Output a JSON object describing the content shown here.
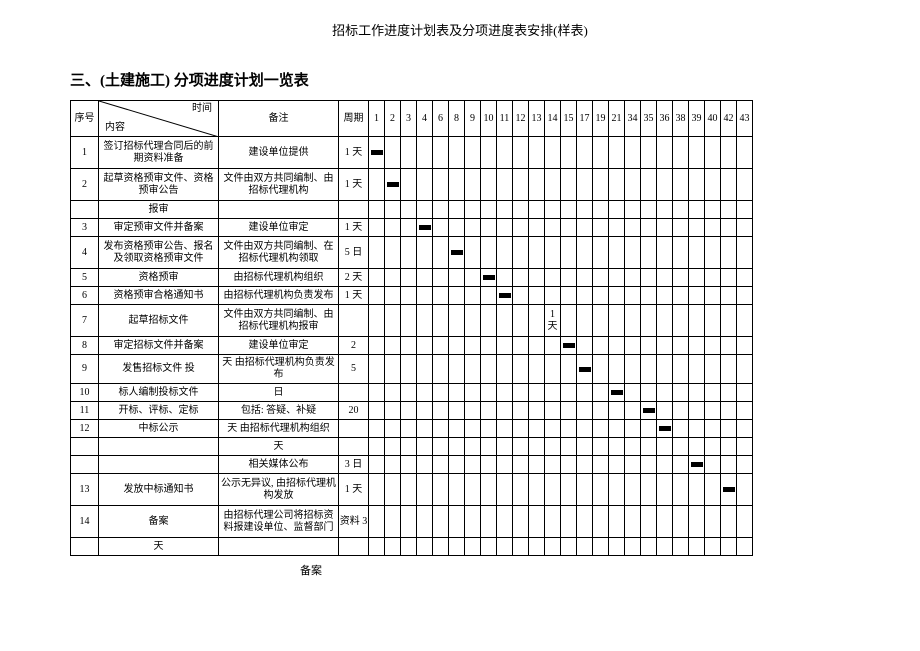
{
  "doc_title": "招标工作进度计划表及分项进度表安排(样表)",
  "section_title": "三、(土建施工) 分项进度计划一览表",
  "header": {
    "seq": "序号",
    "time": "时间",
    "content": "内容",
    "remark": "备注",
    "period": "周期"
  },
  "day_labels": [
    "1",
    "2",
    "3",
    "4",
    "6",
    "8",
    "9",
    "10",
    "11",
    "12",
    "13",
    "14",
    "15",
    "17",
    "19",
    "21",
    "34",
    "35",
    "36",
    "38",
    "39",
    "40",
    "42",
    "43"
  ],
  "rows": [
    {
      "seq": "1",
      "content": "签订招标代理合同后的前期资料准备",
      "remark": "建设单位提供",
      "period": "1 天",
      "bars": [
        0
      ],
      "lines": 2
    },
    {
      "seq": "2",
      "content": "起草资格预审文件、资格预审公告",
      "remark": "文件由双方共同编制、由招标代理机构",
      "period": "1 天",
      "bars": [
        1
      ],
      "lines": 2
    },
    {
      "seq": "",
      "content": "报审",
      "remark": "",
      "period": "",
      "bars": [],
      "lines": 1
    },
    {
      "seq": "3",
      "content": "审定预审文件并备案",
      "remark": "建设单位审定",
      "period": "1 天",
      "bars": [
        3
      ],
      "lines": 1
    },
    {
      "seq": "4",
      "content": "发布资格预审公告、报名及领取资格预审文件",
      "remark": "文件由双方共同编制、在招标代理机构领取",
      "period": "5 日",
      "bars": [
        5
      ],
      "lines": 2
    },
    {
      "seq": "5",
      "content": "资格预审",
      "remark": "由招标代理机构组织",
      "period": "2 天",
      "bars": [
        7
      ],
      "lines": 1
    },
    {
      "seq": "6",
      "content": "资格预审合格通知书",
      "remark": "由招标代理机构负责发布",
      "period": "1 天",
      "bars": [
        8
      ],
      "lines": 1
    },
    {
      "seq": "7",
      "content": "起草招标文件",
      "remark": "文件由双方共同编制、由招标代理机构报审",
      "period": "",
      "bars": [],
      "note": "1 天",
      "note_col": 11,
      "lines": 2
    },
    {
      "seq": "8",
      "content": "审定招标文件并备案",
      "remark": "建设单位审定",
      "period": "2",
      "bars": [
        12
      ],
      "lines": 1
    },
    {
      "seq": "9",
      "content": "发售招标文件      投",
      "remark": "天  由招标代理机构负责发布",
      "period": "5",
      "bars": [
        13
      ],
      "lines": 1
    },
    {
      "seq": "10",
      "content": "标人编制投标文件",
      "remark": "日",
      "period": "",
      "bars": [
        15
      ],
      "lines": 1
    },
    {
      "seq": "11",
      "content": "开标、评标、定标",
      "remark": "包括: 答疑、补疑",
      "period": "20",
      "bars": [
        17
      ],
      "lines": 1
    },
    {
      "seq": "12",
      "content": "中标公示",
      "remark": "天  由招标代理机构组织",
      "period": "",
      "bars": [
        18
      ],
      "lines": 1
    },
    {
      "seq": "",
      "content": "",
      "remark": "天",
      "period": "",
      "bars": [],
      "lines": 1
    },
    {
      "seq": "",
      "content": "",
      "remark": "相关媒体公布",
      "period": "3 日",
      "bars": [
        20
      ],
      "lines": 1
    },
    {
      "seq": "13",
      "content": "发放中标通知书",
      "remark": "公示无异议, 由招标代理机构发放",
      "period": "1 天",
      "bars": [
        22
      ],
      "lines": 2
    },
    {
      "seq": "14",
      "content": "备案",
      "remark": "由招标代理公司将招标资料报建设单位、监督部门",
      "period": "资料    3",
      "bars": [],
      "lines": 2
    },
    {
      "seq": "",
      "content": "天",
      "remark": "",
      "period": "",
      "bars": [],
      "lines": 1,
      "open_bottom": true
    }
  ],
  "footer_note": "备案"
}
